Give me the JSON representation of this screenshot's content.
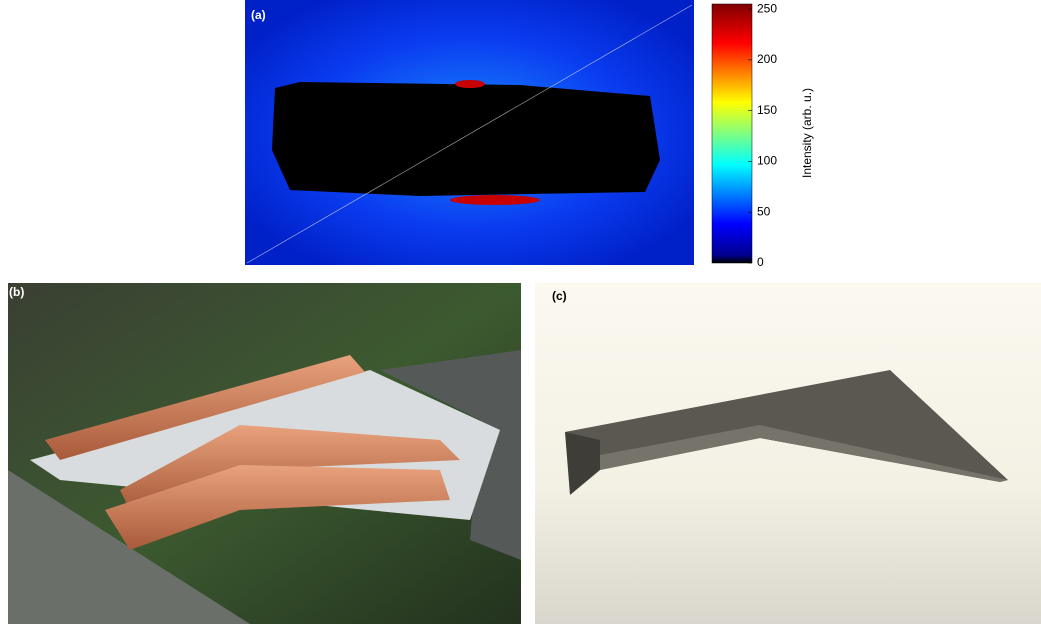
{
  "panels": [
    {
      "label": "(a)"
    },
    {
      "label": "(b)"
    },
    {
      "label": "(c)"
    }
  ],
  "colorbar": {
    "label": "Intensity (arb. u.)",
    "lim": [
      0,
      255
    ],
    "ticks": [
      0,
      50,
      100,
      150,
      200,
      250
    ]
  }
}
